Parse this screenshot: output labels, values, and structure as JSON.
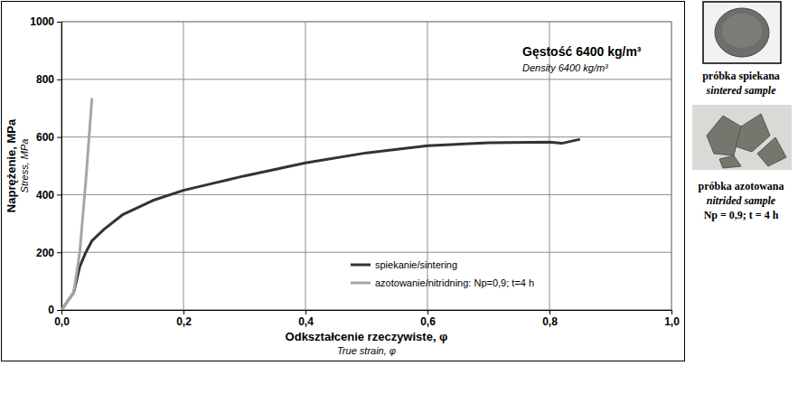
{
  "chart_data": {
    "type": "line",
    "title": "Gęstość 6400 kg/m³",
    "subtitle": "Density 6400 kg/m³",
    "ylabel": "Naprężenie, MPa",
    "ylabel_en": "Stress, MPa",
    "xlabel": "Odkształcenie rzeczywiste, φ",
    "xlabel_en": "True strain, φ",
    "xlim": [
      0,
      1.0
    ],
    "ylim": [
      0,
      1000
    ],
    "xticks": [
      {
        "value": 0,
        "label": "0,0"
      },
      {
        "value": 0.2,
        "label": "0,2"
      },
      {
        "value": 0.4,
        "label": "0,4"
      },
      {
        "value": 0.6,
        "label": "0,6"
      },
      {
        "value": 0.8,
        "label": "0,8"
      },
      {
        "value": 1.0,
        "label": "1,0"
      }
    ],
    "yticks": [
      0,
      200,
      400,
      600,
      800,
      1000
    ],
    "grid": true,
    "legend": "lower right",
    "series": [
      {
        "name": "spiekanie/sintering",
        "color": "#333333",
        "x": [
          0,
          0.01,
          0.02,
          0.03,
          0.04,
          0.05,
          0.07,
          0.1,
          0.15,
          0.2,
          0.25,
          0.3,
          0.4,
          0.5,
          0.6,
          0.7,
          0.8,
          0.82,
          0.85
        ],
        "values": [
          0,
          30,
          60,
          150,
          200,
          240,
          280,
          330,
          380,
          415,
          440,
          465,
          510,
          545,
          570,
          580,
          582,
          578,
          592
        ]
      },
      {
        "name": "azotowanie/nitridning: Np=0,9; t=4 h",
        "color": "#a6a6a6",
        "x": [
          0,
          0.01,
          0.02,
          0.03,
          0.04,
          0.05
        ],
        "values": [
          0,
          30,
          60,
          200,
          450,
          735
        ]
      }
    ],
    "samples": [
      {
        "caption": "próbka spiekana",
        "caption_en": "sintered sample"
      },
      {
        "caption": "próbka azotowana",
        "caption_en": "nitrided sample",
        "note": "Np = 0,9; t = 4 h"
      }
    ]
  }
}
